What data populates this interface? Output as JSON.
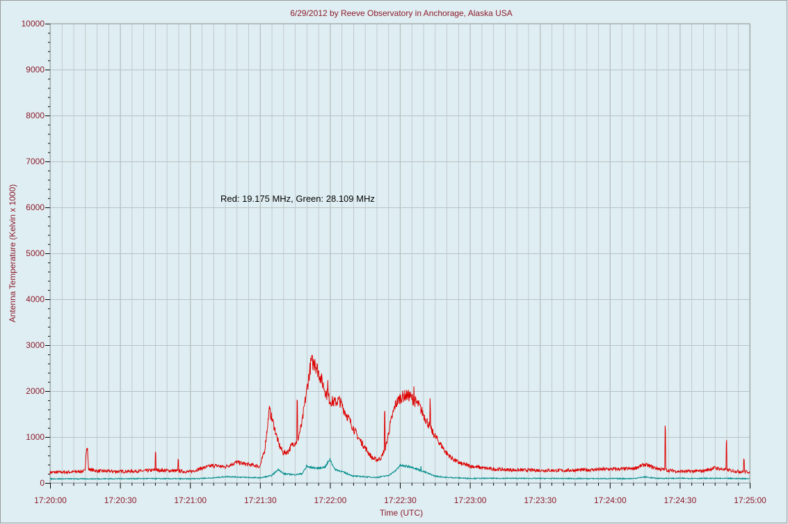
{
  "chart_data": {
    "type": "line",
    "title": "6/29/2012  by  Reeve Observatory  in  Anchorage, Alaska  USA",
    "xlabel": "Time (UTC)",
    "ylabel": "Antenna Temperature (Kelvin x 1000)",
    "annotation": "Red: 19.175 MHz, Green: 28.109 MHz",
    "xlim_seconds_after_1720": [
      0,
      300
    ],
    "ylim": [
      0,
      10000
    ],
    "x_ticks": [
      "17:20:00",
      "17:20:30",
      "17:21:00",
      "17:21:30",
      "17:22:00",
      "17:22:30",
      "17:23:00",
      "17:23:30",
      "17:24:00",
      "17:24:30",
      "17:25:00"
    ],
    "y_ticks": [
      "0",
      "1000",
      "2000",
      "3000",
      "4000",
      "5000",
      "6000",
      "7000",
      "8000",
      "9000",
      "10000"
    ],
    "grid": true,
    "colors": {
      "background": "#dfeef2",
      "grid": "#b9c2c4",
      "text": "#8b1a2b",
      "red_series": "#dd0000",
      "green_series": "#008b8b"
    },
    "series": [
      {
        "color": "red",
        "x": [
          0,
          10,
          15,
          15.5,
          16,
          16.5,
          20,
          30,
          40,
          45,
          50,
          55,
          60,
          65,
          70,
          75,
          80,
          85,
          88,
          90,
          92,
          94,
          96,
          98,
          100,
          102,
          104,
          106,
          108,
          110,
          112,
          114,
          116,
          118,
          120,
          122,
          124,
          126,
          128,
          130,
          132,
          134,
          136,
          138,
          140,
          142,
          144,
          146,
          148,
          150,
          152,
          154,
          156,
          158,
          160,
          162,
          164,
          166,
          168,
          170,
          172,
          174,
          176,
          180,
          185,
          190,
          200,
          220,
          240,
          250,
          255,
          258,
          260,
          264,
          270,
          280,
          285,
          290,
          295,
          300
        ],
        "y": [
          230,
          240,
          260,
          700,
          780,
          300,
          260,
          250,
          260,
          280,
          270,
          260,
          240,
          320,
          380,
          350,
          450,
          400,
          380,
          360,
          700,
          1600,
          1250,
          850,
          650,
          680,
          850,
          900,
          1300,
          2000,
          2650,
          2550,
          2300,
          2000,
          1800,
          1750,
          1800,
          1600,
          1400,
          1200,
          1000,
          850,
          700,
          550,
          500,
          550,
          800,
          1300,
          1700,
          1850,
          1900,
          1900,
          1800,
          1700,
          1500,
          1300,
          1100,
          950,
          800,
          650,
          550,
          480,
          420,
          370,
          330,
          300,
          280,
          270,
          300,
          310,
          400,
          350,
          320,
          280,
          250,
          260,
          330,
          280,
          250,
          240
        ]
      },
      {
        "color": "green",
        "x": [
          0,
          20,
          40,
          60,
          70,
          76,
          80,
          90,
          95,
          98,
          100,
          105,
          108,
          110,
          115,
          118,
          120,
          122,
          125,
          130,
          140,
          145,
          148,
          150,
          155,
          160,
          165,
          170,
          180,
          200,
          230,
          250,
          255,
          260,
          280,
          300
        ],
        "y": [
          90,
          90,
          95,
          90,
          110,
          140,
          130,
          110,
          160,
          300,
          200,
          180,
          200,
          350,
          320,
          350,
          520,
          300,
          250,
          150,
          120,
          160,
          260,
          380,
          350,
          250,
          150,
          120,
          100,
          100,
          95,
          95,
          130,
          100,
          100,
          95
        ]
      }
    ],
    "spikes": {
      "red": [
        {
          "x": 15.6,
          "y": 810
        },
        {
          "x": 45.2,
          "y": 740
        },
        {
          "x": 55.0,
          "y": 520
        },
        {
          "x": 94.0,
          "y": 1700
        },
        {
          "x": 106.0,
          "y": 1880
        },
        {
          "x": 113.5,
          "y": 2980
        },
        {
          "x": 119.0,
          "y": 2350
        },
        {
          "x": 143.5,
          "y": 1580
        },
        {
          "x": 156.0,
          "y": 2330
        },
        {
          "x": 163.0,
          "y": 1850
        },
        {
          "x": 263.8,
          "y": 1260
        },
        {
          "x": 290.0,
          "y": 950
        },
        {
          "x": 297.5,
          "y": 560
        }
      ],
      "green": [
        {
          "x": 159.0,
          "y": 380
        },
        {
          "x": 110.0,
          "y": 420
        }
      ]
    }
  }
}
